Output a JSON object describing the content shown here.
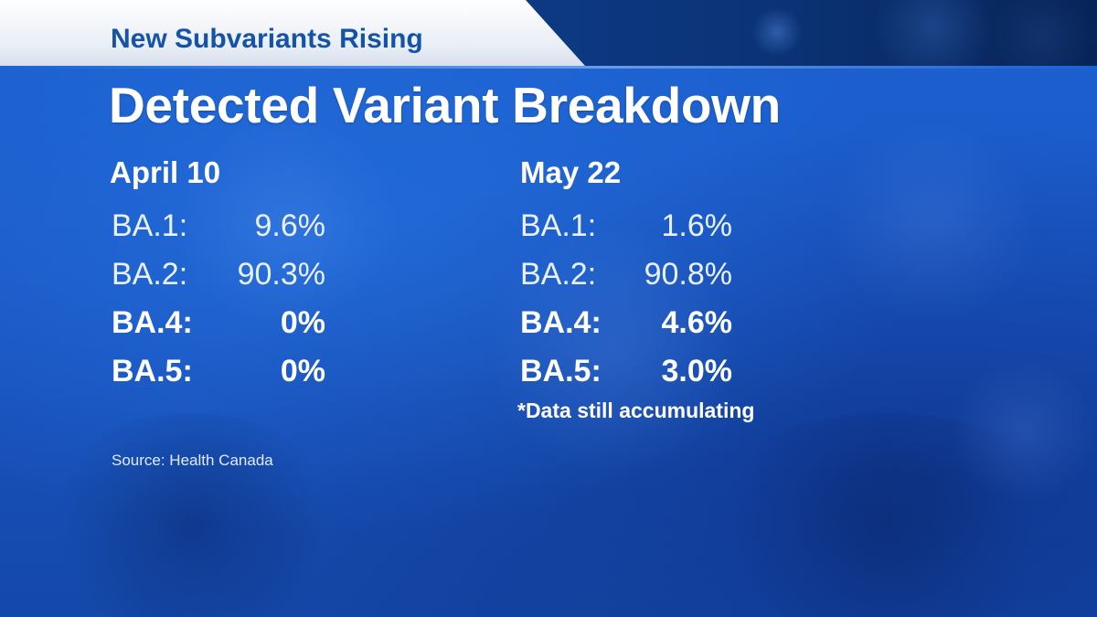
{
  "tab_title": "New Subvariants Rising",
  "headline": "Detected Variant Breakdown",
  "columns": [
    {
      "heading": "April 10",
      "rows": [
        {
          "label": "BA.1:",
          "value": "9.6%"
        },
        {
          "label": "BA.2:",
          "value": "90.3%"
        },
        {
          "label": "BA.4:",
          "value": "0%"
        },
        {
          "label": "BA.5:",
          "value": "0%"
        }
      ]
    },
    {
      "heading": "May 22",
      "rows": [
        {
          "label": "BA.1:",
          "value": "1.6%"
        },
        {
          "label": "BA.2:",
          "value": "90.8%"
        },
        {
          "label": "BA.4:",
          "value": "4.6%"
        },
        {
          "label": "BA.5:",
          "value": "3.0%"
        }
      ],
      "note": "*Data still accumulating"
    }
  ],
  "source": "Source: Health Canada",
  "colors": {
    "panel_blue": "#1a55c2",
    "tab_text_blue": "#1553a8",
    "text_white": "#ffffff"
  }
}
